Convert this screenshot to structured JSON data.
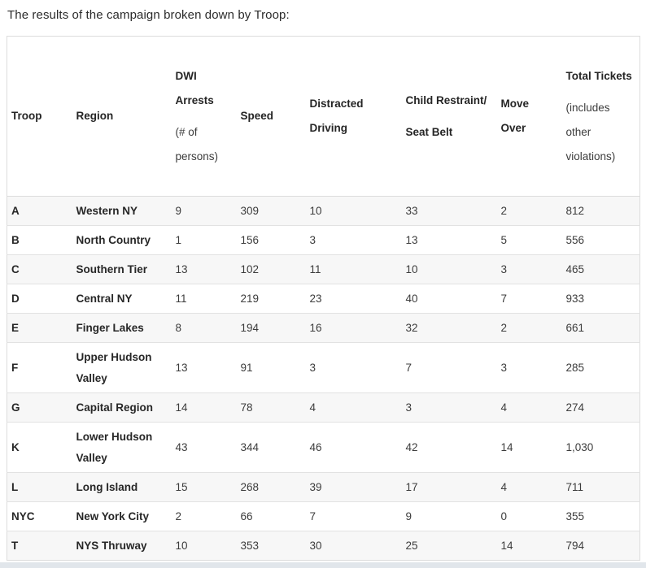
{
  "page": {
    "title": "The results of the campaign broken down by Troop:"
  },
  "colors": {
    "row_stripe": "#f7f7f7",
    "table_border": "#dcdcdc",
    "body_text": "#3c3c3c",
    "bold_text": "#252525",
    "scrollbar_track": "#e1e6eb"
  },
  "table": {
    "columns": [
      {
        "key": "troop",
        "lines": [
          {
            "text": "Troop",
            "bold": true
          }
        ]
      },
      {
        "key": "region",
        "lines": [
          {
            "text": "Region",
            "bold": true
          }
        ]
      },
      {
        "key": "dwi",
        "lines": [
          {
            "text": "DWI Arrests",
            "bold": true
          },
          {
            "text": "(# of persons)",
            "bold": false
          }
        ]
      },
      {
        "key": "speed",
        "lines": [
          {
            "text": "Speed",
            "bold": true
          }
        ]
      },
      {
        "key": "distracted",
        "lines": [
          {
            "text": "Distracted Driving",
            "bold": true
          }
        ]
      },
      {
        "key": "child",
        "lines": [
          {
            "text": "Child Restraint/",
            "bold": true
          },
          {
            "text": "Seat Belt",
            "bold": true
          }
        ]
      },
      {
        "key": "moveover",
        "lines": [
          {
            "text": "Move Over",
            "bold": true
          }
        ]
      },
      {
        "key": "total",
        "lines": [
          {
            "text": "Total Tickets",
            "bold": true
          },
          {
            "text": "(includes other violations)",
            "bold": false
          }
        ]
      }
    ],
    "rows": [
      {
        "troop": "A",
        "region": "Western NY",
        "dwi": "9",
        "speed": "309",
        "distracted": "10",
        "child": "33",
        "moveover": "2",
        "total": "812"
      },
      {
        "troop": "B",
        "region": "North Country",
        "dwi": "1",
        "speed": "156",
        "distracted": "3",
        "child": "13",
        "moveover": "5",
        "total": "556"
      },
      {
        "troop": "C",
        "region": "Southern Tier",
        "dwi": "13",
        "speed": "102",
        "distracted": "11",
        "child": "10",
        "moveover": "3",
        "total": "465"
      },
      {
        "troop": "D",
        "region": "Central NY",
        "dwi": "11",
        "speed": "219",
        "distracted": "23",
        "child": "40",
        "moveover": "7",
        "total": "933"
      },
      {
        "troop": "E",
        "region": "Finger Lakes",
        "dwi": "8",
        "speed": "194",
        "distracted": "16",
        "child": "32",
        "moveover": "2",
        "total": "661"
      },
      {
        "troop": "F",
        "region": "Upper Hudson Valley",
        "dwi": "13",
        "speed": "91",
        "distracted": "3",
        "child": "7",
        "moveover": "3",
        "total": "285"
      },
      {
        "troop": "G",
        "region": "Capital Region",
        "dwi": "14",
        "speed": "78",
        "distracted": "4",
        "child": "3",
        "moveover": "4",
        "total": "274"
      },
      {
        "troop": "K",
        "region": "Lower Hudson Valley",
        "dwi": "43",
        "speed": "344",
        "distracted": "46",
        "child": "42",
        "moveover": "14",
        "total": "1,030"
      },
      {
        "troop": "L",
        "region": "Long Island",
        "dwi": "15",
        "speed": "268",
        "distracted": "39",
        "child": "17",
        "moveover": "4",
        "total": "711"
      },
      {
        "troop": "NYC",
        "region": "New York City",
        "dwi": "2",
        "speed": "66",
        "distracted": "7",
        "child": "9",
        "moveover": "0",
        "total": "355"
      },
      {
        "troop": "T",
        "region": "NYS Thruway",
        "dwi": "10",
        "speed": "353",
        "distracted": "30",
        "child": "25",
        "moveover": "14",
        "total": "794"
      }
    ]
  }
}
